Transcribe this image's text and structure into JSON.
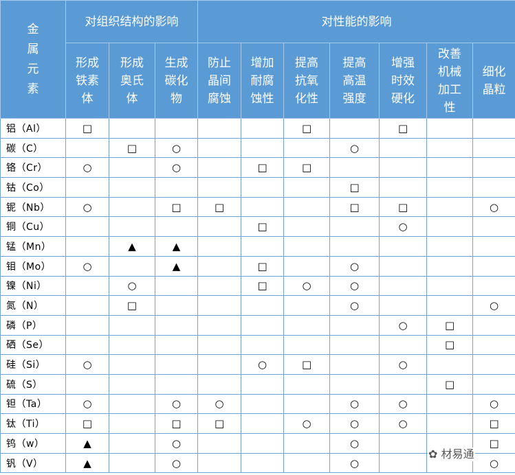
{
  "header": {
    "element_col": "金属元素",
    "group_structure": "对组织结构的影响",
    "group_properties": "对性能的影响",
    "columns": [
      "形成铁素体",
      "形成奥氏体",
      "生成碳化物",
      "防止晶间腐蚀",
      "增加耐腐蚀性",
      "提高抗氧化性",
      "提高高温强度",
      "增强时效硬化",
      "改善机械加工性",
      "细化晶粒"
    ]
  },
  "rows": [
    {
      "element": "铝（Al）",
      "marks": [
        "□",
        "",
        "",
        "",
        "",
        "□",
        "",
        "□",
        "",
        ""
      ]
    },
    {
      "element": "碳（C）",
      "marks": [
        "",
        "□",
        "○",
        "",
        "",
        "",
        "○",
        "",
        "",
        ""
      ]
    },
    {
      "element": "铬（Cr）",
      "marks": [
        "○",
        "",
        "○",
        "",
        "□",
        "□",
        "",
        "",
        "",
        ""
      ]
    },
    {
      "element": "钴（Co）",
      "marks": [
        "",
        "",
        "",
        "",
        "",
        "",
        "□",
        "",
        "",
        ""
      ]
    },
    {
      "element": "铌（Nb）",
      "marks": [
        "○",
        "",
        "□",
        "□",
        "",
        "",
        "□",
        "□",
        "",
        "○"
      ]
    },
    {
      "element": "铜（Cu）",
      "marks": [
        "",
        "",
        "",
        "",
        "□",
        "",
        "",
        "○",
        "",
        ""
      ]
    },
    {
      "element": "锰（Mn）",
      "marks": [
        "",
        "▲",
        "▲",
        "",
        "",
        "",
        "",
        "",
        "",
        ""
      ]
    },
    {
      "element": "钼（Mo）",
      "marks": [
        "○",
        "",
        "▲",
        "",
        "□",
        "",
        "○",
        "",
        "",
        ""
      ]
    },
    {
      "element": "镍（Ni）",
      "marks": [
        "",
        "○",
        "",
        "",
        "□",
        "○",
        "○",
        "",
        "",
        ""
      ]
    },
    {
      "element": "氮（N）",
      "marks": [
        "",
        "□",
        "",
        "",
        "",
        "",
        "○",
        "",
        "",
        "○"
      ]
    },
    {
      "element": "磷（P）",
      "marks": [
        "",
        "",
        "",
        "",
        "",
        "",
        "",
        "○",
        "□",
        ""
      ]
    },
    {
      "element": "硒（Se）",
      "marks": [
        "",
        "",
        "",
        "",
        "",
        "",
        "",
        "",
        "□",
        ""
      ]
    },
    {
      "element": "硅（Si）",
      "marks": [
        "○",
        "",
        "",
        "",
        "○",
        "□",
        "",
        "○",
        "",
        ""
      ]
    },
    {
      "element": "硫（S）",
      "marks": [
        "",
        "",
        "",
        "",
        "",
        "",
        "",
        "",
        "□",
        ""
      ]
    },
    {
      "element": "钽（Ta）",
      "marks": [
        "○",
        "",
        "○",
        "○",
        "",
        "",
        "○",
        "○",
        "",
        "○"
      ]
    },
    {
      "element": "钛（Ti）",
      "marks": [
        "□",
        "",
        "□",
        "□",
        "",
        "○",
        "○",
        "○",
        "",
        "□"
      ]
    },
    {
      "element": "钨（w）",
      "marks": [
        "▲",
        "",
        "○",
        "",
        "",
        "",
        "○",
        "",
        "",
        "□"
      ]
    },
    {
      "element": "钒（V）",
      "marks": [
        "▲",
        "",
        "○",
        "",
        "",
        "",
        "○",
        "",
        "",
        "○"
      ]
    }
  ],
  "watermark": "材易通",
  "colors": {
    "header_bg": "#5b9bd5",
    "grid": "#6fa3d8"
  }
}
